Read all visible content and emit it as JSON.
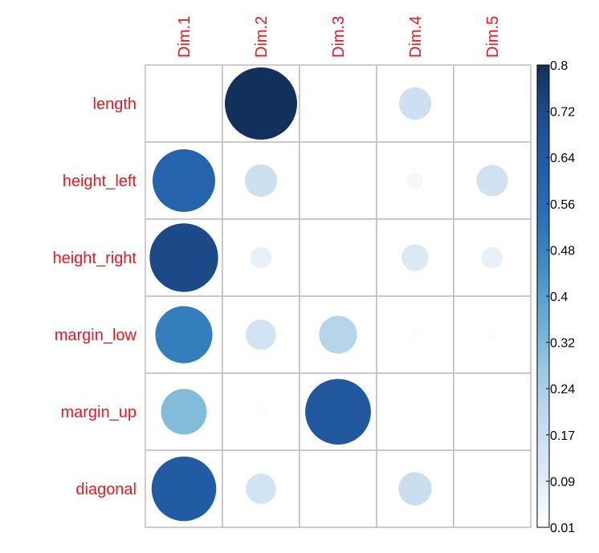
{
  "chart_data": {
    "type": "heatmap",
    "style": "corrplot-circles",
    "columns": [
      "Dim.1",
      "Dim.2",
      "Dim.3",
      "Dim.4",
      "Dim.5"
    ],
    "rows": [
      "length",
      "height_left",
      "height_right",
      "margin_low",
      "margin_up",
      "diagonal"
    ],
    "values": [
      [
        0.01,
        0.8,
        0.0,
        0.16,
        0.01
      ],
      [
        0.6,
        0.16,
        0.0,
        0.04,
        0.15
      ],
      [
        0.72,
        0.07,
        0.01,
        0.11,
        0.07
      ],
      [
        0.5,
        0.14,
        0.22,
        0.02,
        0.02
      ],
      [
        0.32,
        0.02,
        0.66,
        0.0,
        0.0
      ],
      [
        0.64,
        0.14,
        0.0,
        0.17,
        0.01
      ]
    ],
    "colorbar": {
      "min": 0.01,
      "max": 0.8,
      "ticks": [
        "0.8",
        "0.72",
        "0.64",
        "0.56",
        "0.48",
        "0.4",
        "0.32",
        "0.24",
        "0.17",
        "0.09",
        "0.01"
      ]
    },
    "label_color": "#e8191f",
    "grid_color": "#bfbfbf",
    "colors": [
      "#ffffff",
      "#deebf6",
      "#c6dbef",
      "#9ecae1",
      "#6baed6",
      "#4292c6",
      "#2c6fb5",
      "#225ea8",
      "#1d4d8c",
      "#132f5c"
    ]
  }
}
